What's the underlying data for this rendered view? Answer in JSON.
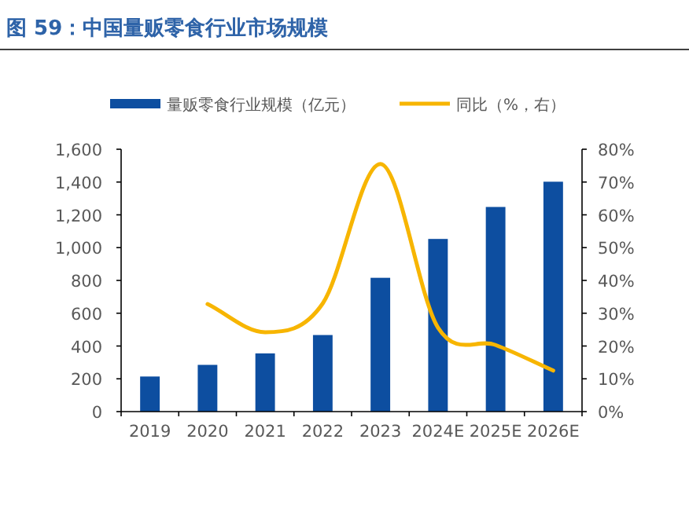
{
  "chart_data": {
    "type": "bar",
    "title": "图 59：中国量贩零食行业市场规模",
    "categories": [
      "2019",
      "2020",
      "2021",
      "2022",
      "2023",
      "2024E",
      "2025E",
      "2026E"
    ],
    "series": [
      {
        "name": "量贩零食行业规模（亿元）",
        "color": "#0d4ea0",
        "values": [
          214,
          285,
          355,
          467,
          816,
          1053,
          1248,
          1402
        ]
      },
      {
        "name": "同比（%，右）",
        "type": "line",
        "axis": "y2",
        "color": "#f7b500",
        "values": [
          null,
          32.8,
          24.2,
          33,
          75.5,
          25.6,
          20.3,
          12.5
        ]
      }
    ],
    "ylim": [
      0,
      1600
    ],
    "yticks": [
      0,
      200,
      400,
      600,
      800,
      {
        "value": 1000,
        "label": "1,000"
      },
      {
        "value": 1200,
        "label": "1,200"
      },
      {
        "value": 1400,
        "label": "1,400"
      },
      {
        "value": 1600,
        "label": "1,600"
      }
    ],
    "y2lim": [
      0,
      80
    ],
    "y2ticks": [
      {
        "value": 0,
        "label": "0%"
      },
      {
        "value": 10,
        "label": "10%"
      },
      {
        "value": 20,
        "label": "20%"
      },
      {
        "value": 30,
        "label": "30%"
      },
      {
        "value": 40,
        "label": "40%"
      },
      {
        "value": 50,
        "label": "50%"
      },
      {
        "value": 60,
        "label": "60%"
      },
      {
        "value": 70,
        "label": "70%"
      },
      {
        "value": 80,
        "label": "80%"
      }
    ],
    "legend": "top",
    "grid": false
  }
}
